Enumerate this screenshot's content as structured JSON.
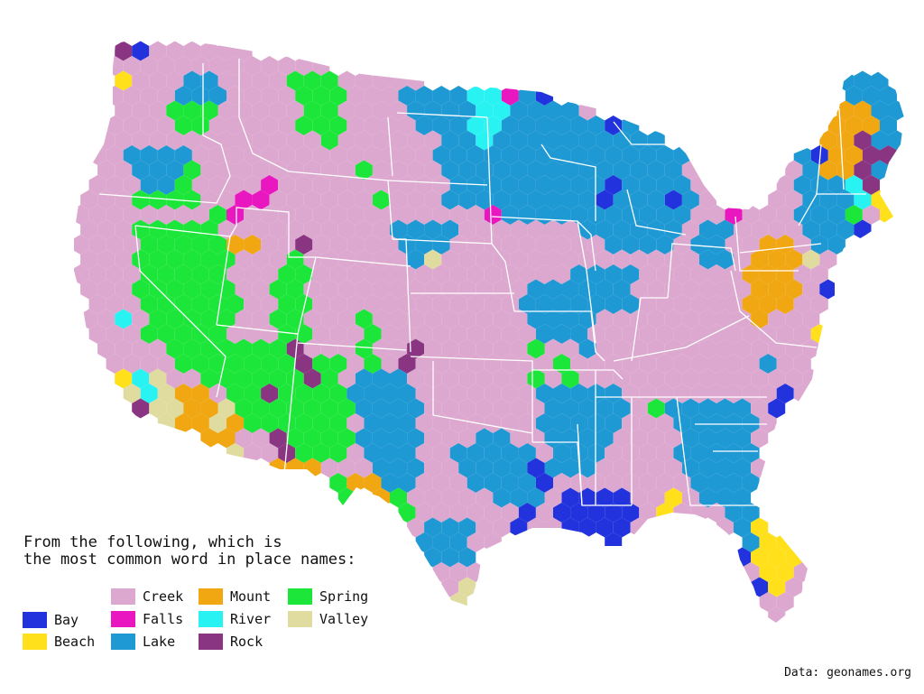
{
  "question": {
    "line1": "From the following, which is",
    "line2": "the most common word in place names:"
  },
  "legend": [
    {
      "key": "bay",
      "label": "Bay",
      "color": "#2233dd"
    },
    {
      "key": "beach",
      "label": "Beach",
      "color": "#ffe01a"
    },
    {
      "key": "creek",
      "label": "Creek",
      "color": "#dda8cf"
    },
    {
      "key": "falls",
      "label": "Falls",
      "color": "#e817bf"
    },
    {
      "key": "lake",
      "label": "Lake",
      "color": "#1f99d3"
    },
    {
      "key": "mount",
      "label": "Mount",
      "color": "#f0a712"
    },
    {
      "key": "river",
      "label": "River",
      "color": "#29f2f2"
    },
    {
      "key": "rock",
      "label": "Rock",
      "color": "#8a3582"
    },
    {
      "key": "spring",
      "label": "Spring",
      "color": "#1de63a"
    },
    {
      "key": "valley",
      "label": "Valley",
      "color": "#e0dca0"
    }
  ],
  "credit": "Data: geonames.org"
}
